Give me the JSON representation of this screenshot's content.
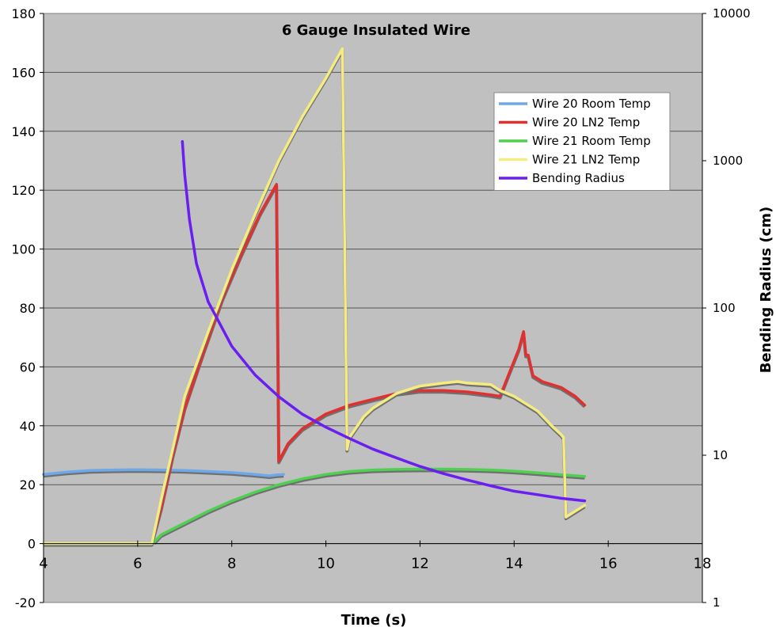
{
  "chart_data": {
    "type": "line",
    "title": "6 Gauge Insulated Wire",
    "xlabel": "Time (s)",
    "ylabel": "",
    "y2label": "Bending Radius (cm)",
    "xlim": [
      4,
      18
    ],
    "ylim": [
      -20,
      180
    ],
    "y2lim": [
      1,
      10000
    ],
    "y2_scale": "log",
    "x_ticks": [
      "4",
      "6",
      "8",
      "10",
      "12",
      "14",
      "16",
      "18"
    ],
    "y_ticks": [
      "-20",
      "0",
      "20",
      "40",
      "60",
      "80",
      "100",
      "120",
      "140",
      "160",
      "180"
    ],
    "y2_ticks": [
      "1",
      "10",
      "100",
      "1000",
      "10000"
    ],
    "grid": "horizontal",
    "legend_position": "top-right",
    "background_color": "#c0c0c0",
    "series": [
      {
        "name": "Wire 20 Room Temp",
        "color": "#6fa8e8",
        "axis": "left",
        "points": [
          [
            4.0,
            23.5
          ],
          [
            4.5,
            24.3
          ],
          [
            5.0,
            24.8
          ],
          [
            5.5,
            25.0
          ],
          [
            6.0,
            25.1
          ],
          [
            6.5,
            25.0
          ],
          [
            7.0,
            24.8
          ],
          [
            7.5,
            24.5
          ],
          [
            8.0,
            24.1
          ],
          [
            8.5,
            23.5
          ],
          [
            8.8,
            23.0
          ],
          [
            8.95,
            23.3
          ],
          [
            9.1,
            23.5
          ]
        ]
      },
      {
        "name": "Wire 20 LN2 Temp",
        "color": "#e03030",
        "axis": "left",
        "points": [
          [
            6.3,
            0
          ],
          [
            6.5,
            12
          ],
          [
            6.75,
            30
          ],
          [
            7.0,
            46
          ],
          [
            7.4,
            65
          ],
          [
            7.8,
            83
          ],
          [
            8.2,
            98
          ],
          [
            8.6,
            112
          ],
          [
            8.95,
            122
          ],
          [
            9.0,
            28
          ],
          [
            9.2,
            34
          ],
          [
            9.5,
            39
          ],
          [
            10.0,
            44
          ],
          [
            10.5,
            47
          ],
          [
            11.0,
            49
          ],
          [
            11.5,
            51
          ],
          [
            12.0,
            52
          ],
          [
            12.5,
            52
          ],
          [
            13.0,
            51.5
          ],
          [
            13.5,
            50.5
          ],
          [
            13.7,
            50
          ],
          [
            13.9,
            58
          ],
          [
            14.1,
            66
          ],
          [
            14.2,
            72
          ],
          [
            14.25,
            64
          ],
          [
            14.3,
            64
          ],
          [
            14.4,
            57
          ],
          [
            14.6,
            55
          ],
          [
            15.0,
            53
          ],
          [
            15.3,
            50
          ],
          [
            15.5,
            47
          ]
        ]
      },
      {
        "name": "Wire 21 Room Temp",
        "color": "#50d050",
        "axis": "left",
        "points": [
          [
            6.35,
            0.5
          ],
          [
            6.5,
            3
          ],
          [
            7.0,
            7
          ],
          [
            7.5,
            11
          ],
          [
            8.0,
            14.5
          ],
          [
            8.5,
            17.5
          ],
          [
            9.0,
            20
          ],
          [
            9.5,
            22
          ],
          [
            10.0,
            23.5
          ],
          [
            10.5,
            24.5
          ],
          [
            11.0,
            25.0
          ],
          [
            11.5,
            25.2
          ],
          [
            12.0,
            25.3
          ],
          [
            12.5,
            25.3
          ],
          [
            13.0,
            25.2
          ],
          [
            13.5,
            25.0
          ],
          [
            14.0,
            24.6
          ],
          [
            14.5,
            24.0
          ],
          [
            15.0,
            23.4
          ],
          [
            15.5,
            22.8
          ]
        ]
      },
      {
        "name": "Wire 21 LN2 Temp",
        "color": "#f4ec80",
        "axis": "left",
        "points": [
          [
            4.0,
            0
          ],
          [
            5.0,
            0
          ],
          [
            6.0,
            0
          ],
          [
            6.3,
            0
          ],
          [
            6.5,
            15
          ],
          [
            7.0,
            50
          ],
          [
            7.5,
            72
          ],
          [
            8.0,
            93
          ],
          [
            8.5,
            112
          ],
          [
            9.0,
            130
          ],
          [
            9.5,
            145
          ],
          [
            10.0,
            158
          ],
          [
            10.35,
            168
          ],
          [
            10.45,
            32
          ],
          [
            10.5,
            36
          ],
          [
            10.8,
            43
          ],
          [
            11.0,
            46
          ],
          [
            11.5,
            51
          ],
          [
            12.0,
            53.5
          ],
          [
            12.5,
            54.5
          ],
          [
            12.8,
            55
          ],
          [
            13.0,
            54.5
          ],
          [
            13.5,
            54
          ],
          [
            13.7,
            52
          ],
          [
            14.0,
            50
          ],
          [
            14.5,
            45
          ],
          [
            14.8,
            40
          ],
          [
            15.0,
            37
          ],
          [
            15.05,
            36
          ],
          [
            15.1,
            9
          ],
          [
            15.3,
            11
          ],
          [
            15.5,
            13
          ]
        ]
      },
      {
        "name": "Bending Radius",
        "color": "#6a1ef0",
        "axis": "right",
        "points": [
          [
            6.95,
            1350
          ],
          [
            7.0,
            800
          ],
          [
            7.1,
            400
          ],
          [
            7.25,
            200
          ],
          [
            7.5,
            110
          ],
          [
            8.0,
            55
          ],
          [
            8.5,
            35
          ],
          [
            9.0,
            25
          ],
          [
            9.5,
            19
          ],
          [
            10.0,
            15.5
          ],
          [
            10.5,
            13
          ],
          [
            11.0,
            11
          ],
          [
            11.5,
            9.6
          ],
          [
            12.0,
            8.4
          ],
          [
            12.5,
            7.5
          ],
          [
            13.0,
            6.8
          ],
          [
            13.5,
            6.2
          ],
          [
            14.0,
            5.7
          ],
          [
            14.5,
            5.4
          ],
          [
            15.0,
            5.1
          ],
          [
            15.5,
            4.9
          ]
        ]
      }
    ]
  }
}
